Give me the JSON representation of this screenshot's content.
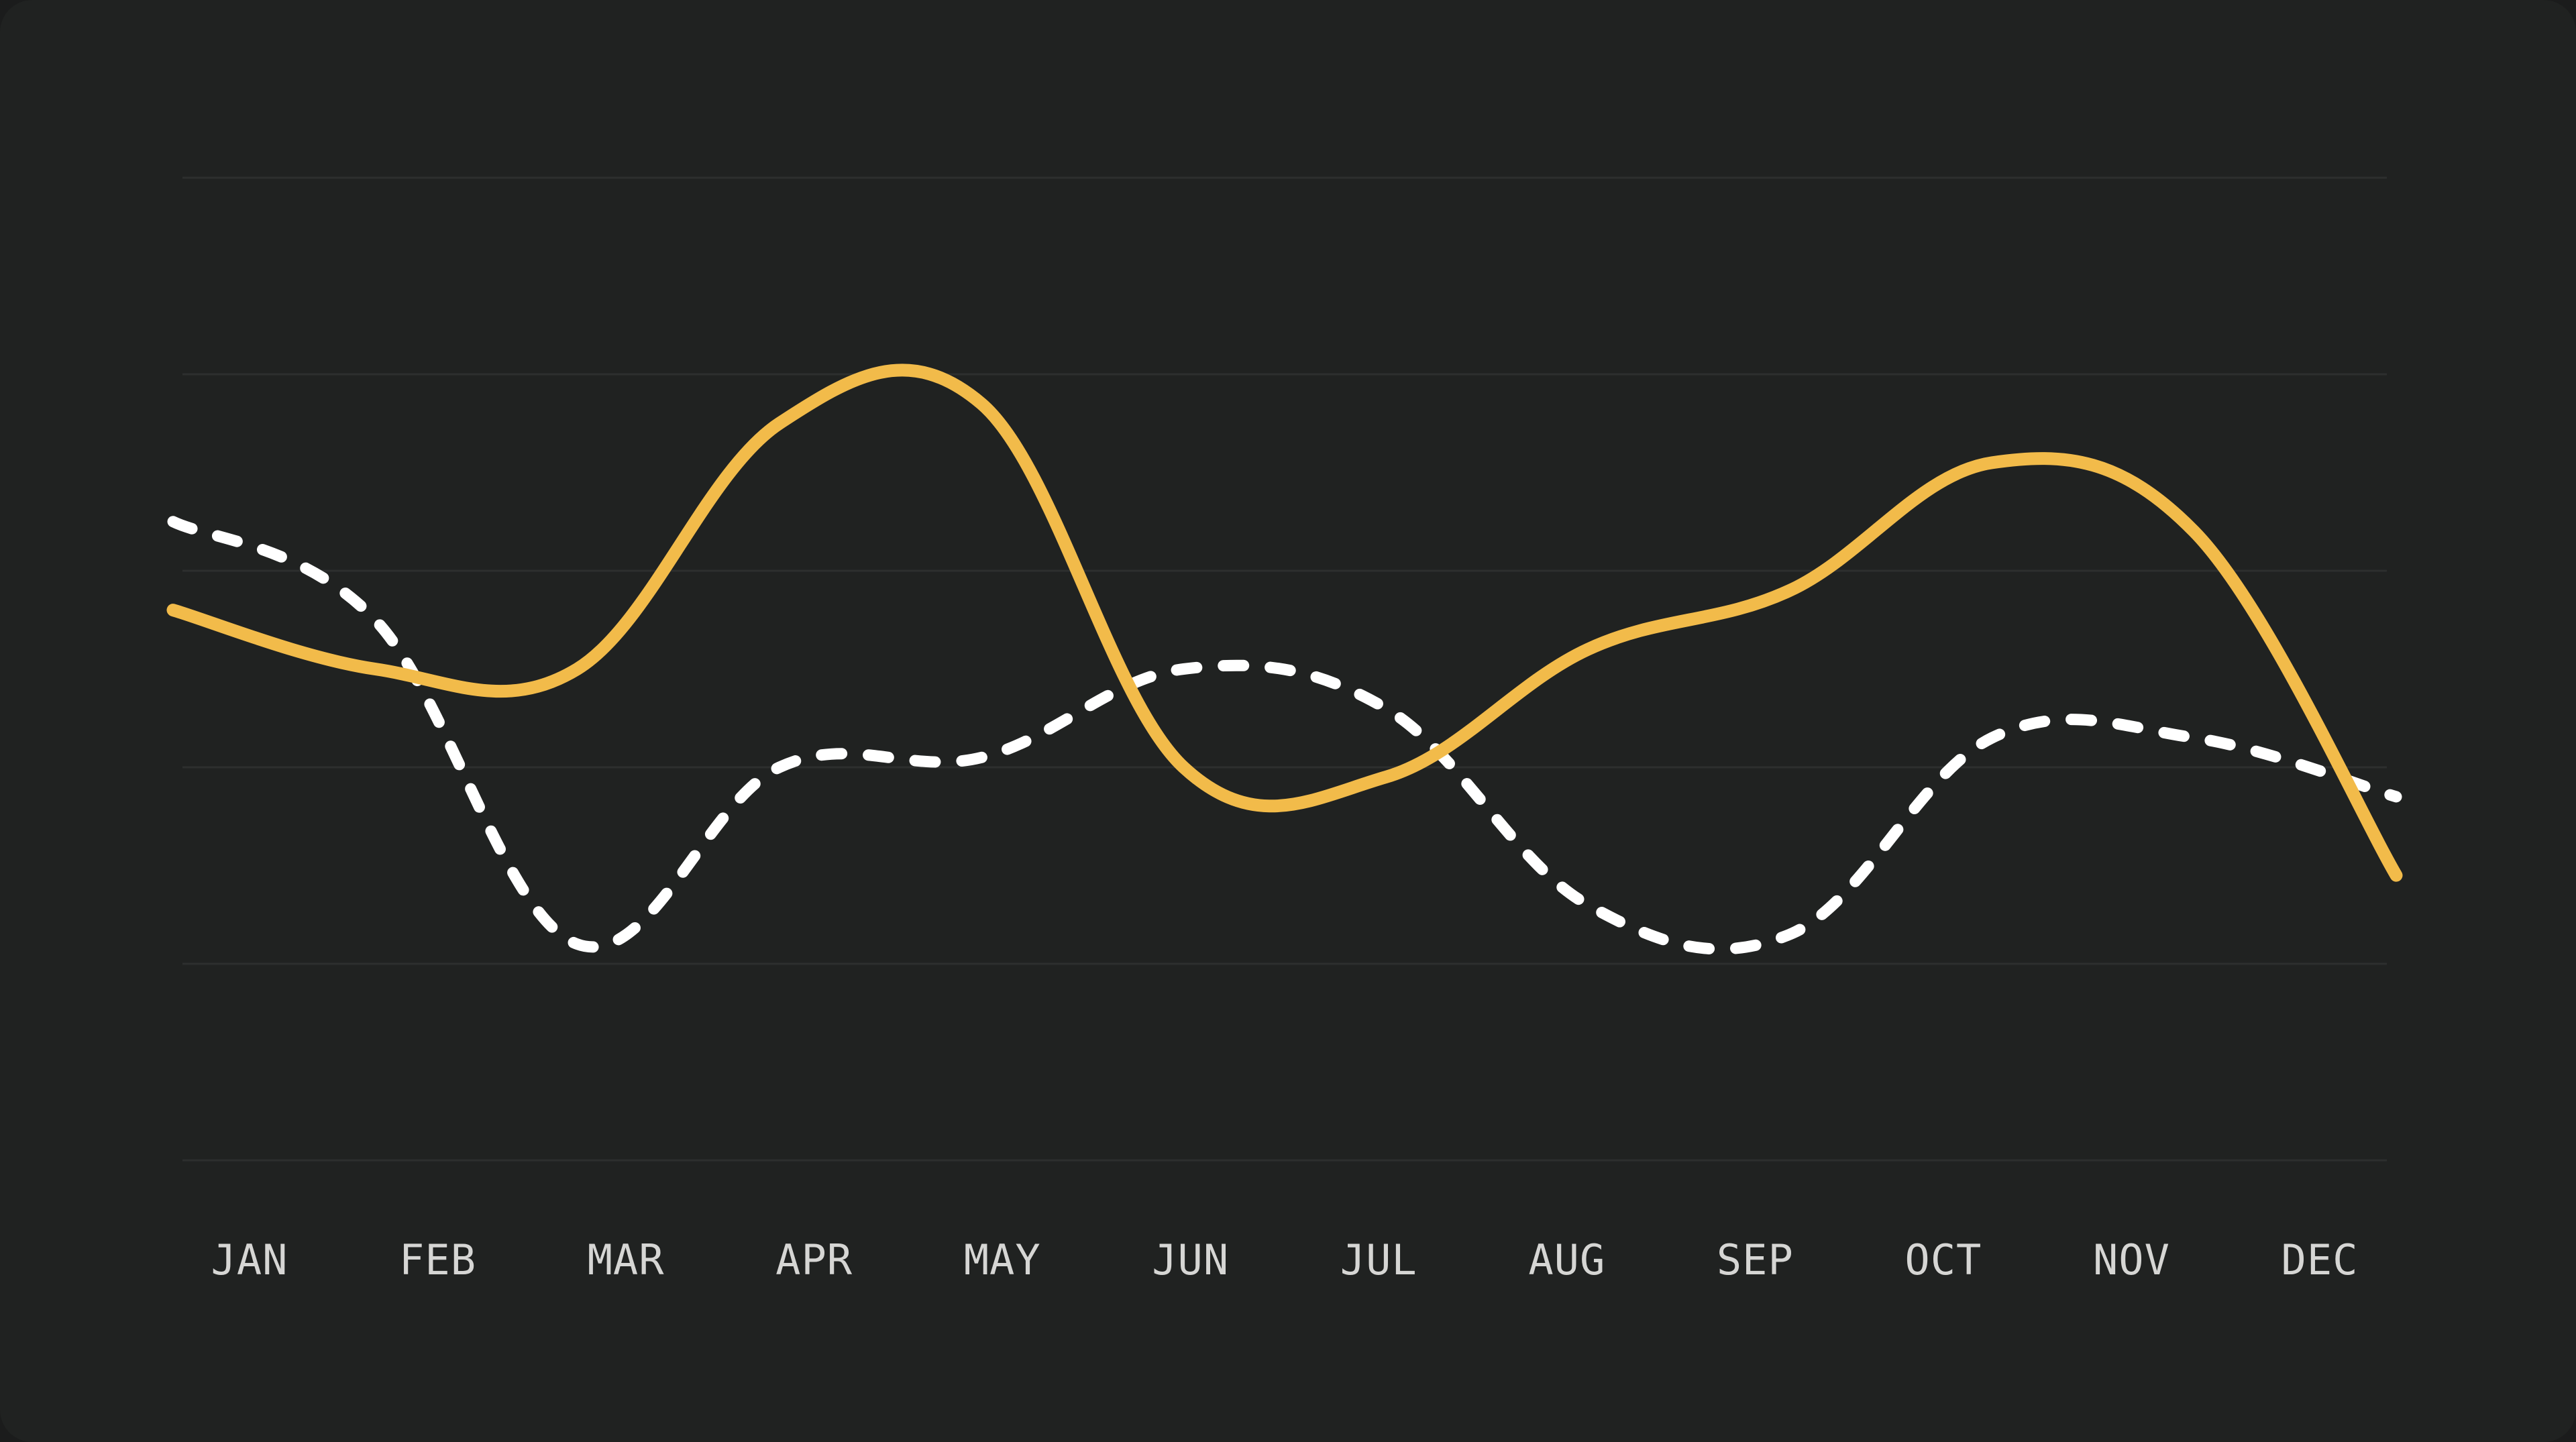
{
  "chart_data": {
    "type": "line",
    "title": "",
    "xlabel": "",
    "ylabel": "",
    "categories": [
      "JAN",
      "FEB",
      "MAR",
      "APR",
      "MAY",
      "JUN",
      "JUL",
      "AUG",
      "SEP",
      "OCT",
      "NOV",
      "DEC"
    ],
    "ylim": [
      0,
      100
    ],
    "grid": true,
    "legend": "none",
    "series": [
      {
        "style": "solid",
        "color": "#f2bb4a",
        "values": [
          56,
          50,
          50,
          75,
          77,
          40,
          39,
          52,
          58,
          71,
          64,
          29
        ]
      },
      {
        "style": "dashed",
        "color": "#ffffff",
        "values": [
          65,
          55,
          22,
          40,
          41,
          50,
          46,
          26,
          23,
          43,
          43,
          37
        ]
      }
    ]
  }
}
